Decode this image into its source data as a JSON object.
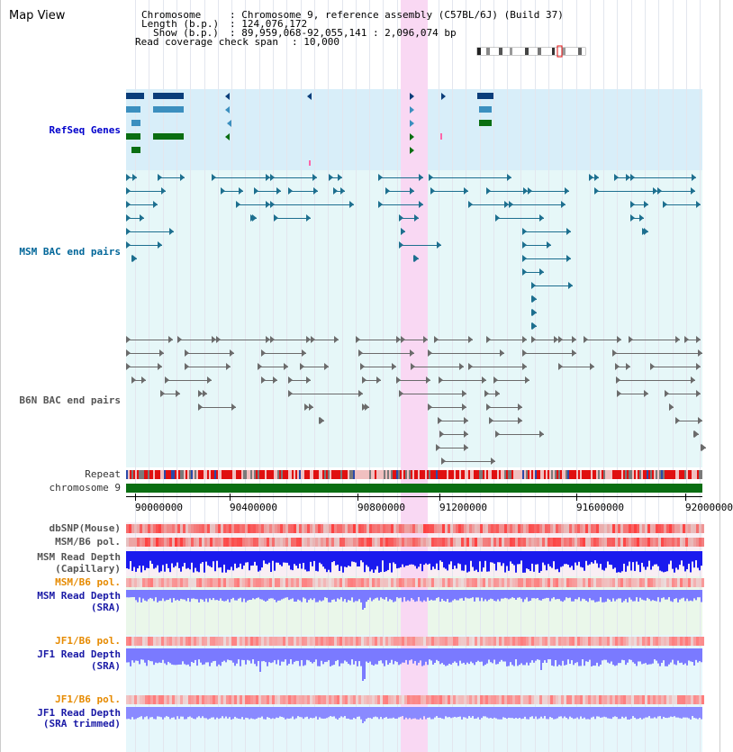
{
  "header": {
    "view_title": "Map View",
    "chromosome_label": "Chromosome",
    "chromosome_value": ": Chromosome 9, reference assembly (C57BL/6J) (Build 37)",
    "length_label": "Length (b.p.)",
    "length_value": ": 124,076,172",
    "show_label": "Show (b.p.)",
    "show_value": ": 89,959,068-92,055,141 : 2,096,074 bp",
    "coverage_label": "Read coverage check span",
    "coverage_value": ": 10,000"
  },
  "tracks": {
    "refseq": "RefSeq Genes",
    "msm_bac": "MSM BAC end pairs",
    "b6n_bac": "B6N BAC end pairs",
    "repeat": "Repeat",
    "chromosome": "chromosome 9",
    "dbsnp": "dbSNP(Mouse)",
    "msm_b6_pol_1": "MSM/B6 pol.",
    "msm_depth_cap_1": "MSM Read Depth",
    "msm_depth_cap_2": "(Capillary)",
    "msm_b6_pol_2": "MSM/B6 pol.",
    "msm_depth_sra_1": "MSM Read Depth",
    "msm_depth_sra_2": "(SRA)",
    "jf1_b6_pol_1": "JF1/B6 pol.",
    "jf1_depth_sra_1": "JF1 Read Depth",
    "jf1_depth_sra_2": "(SRA)",
    "jf1_b6_pol_2": "JF1/B6 pol.",
    "jf1_depth_trim_1": "JF1 Read Depth",
    "jf1_depth_trim_2": "(SRA trimmed)"
  },
  "axis": {
    "ticks": [
      "90000000",
      "90400000",
      "90800000",
      "91200000",
      "91600000",
      "92000000"
    ]
  },
  "colors": {
    "highlight": "#f9d8f3",
    "refseq_bg": "#d8eef9",
    "bac_bg": "#e6f7f8",
    "gene_dark": "#0a3d7a",
    "gene_light": "#3b8fbf",
    "gene_green": "#0a6e12",
    "msm_bac": "#1d6f8f",
    "b6n_bac": "#6b6b6b",
    "repeat_red": "#e01010",
    "chrom_green": "#0a6e12",
    "depth_dark": "#1a1aee",
    "depth_light": "#7a7aff",
    "pol_red": "#e63a3a"
  }
}
